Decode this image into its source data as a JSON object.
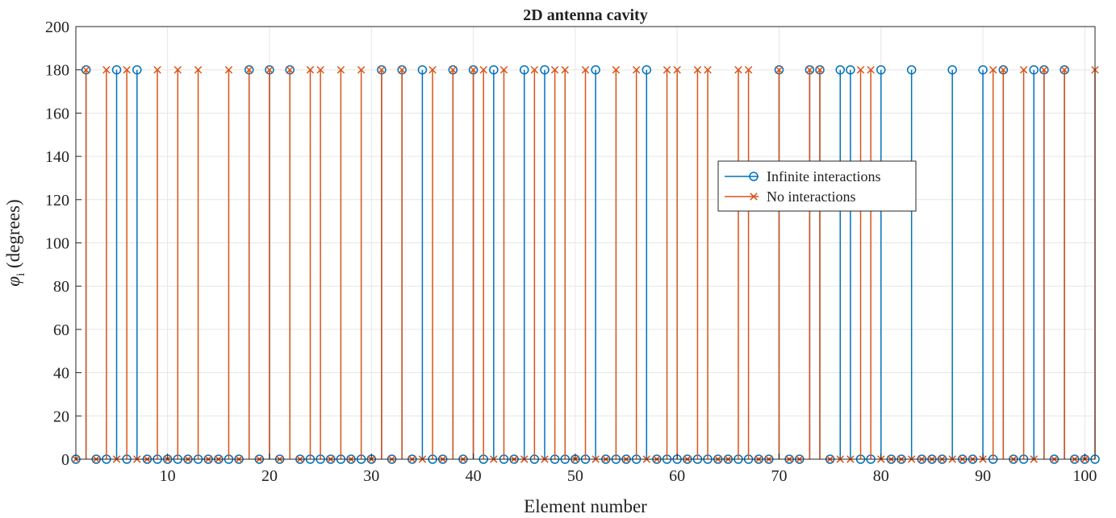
{
  "chart_data": {
    "type": "stem",
    "title": "2D antenna cavity",
    "xlabel": "Element number",
    "ylabel_symbol": "φ",
    "ylabel_subscript": "i",
    "ylabel_rest": " (degrees)",
    "xlim": [
      1,
      101
    ],
    "ylim": [
      0,
      200
    ],
    "xticks": [
      10,
      20,
      30,
      40,
      50,
      60,
      70,
      80,
      90,
      100
    ],
    "yticks": [
      0,
      20,
      40,
      60,
      80,
      100,
      120,
      140,
      160,
      180,
      200
    ],
    "grid": true,
    "legend_position": "right-center",
    "x": [
      1,
      2,
      3,
      4,
      5,
      6,
      7,
      8,
      9,
      10,
      11,
      12,
      13,
      14,
      15,
      16,
      17,
      18,
      19,
      20,
      21,
      22,
      23,
      24,
      25,
      26,
      27,
      28,
      29,
      30,
      31,
      32,
      33,
      34,
      35,
      36,
      37,
      38,
      39,
      40,
      41,
      42,
      43,
      44,
      45,
      46,
      47,
      48,
      49,
      50,
      51,
      52,
      53,
      54,
      55,
      56,
      57,
      58,
      59,
      60,
      61,
      62,
      63,
      64,
      65,
      66,
      67,
      68,
      69,
      70,
      71,
      72,
      73,
      74,
      75,
      76,
      77,
      78,
      79,
      80,
      81,
      82,
      83,
      84,
      85,
      86,
      87,
      88,
      89,
      90,
      91,
      92,
      93,
      94,
      95,
      96,
      97,
      98,
      99,
      100,
      101
    ],
    "series": [
      {
        "name": "Infinite interactions",
        "marker": "circle",
        "color": "#0072BD",
        "values": [
          0,
          180,
          0,
          0,
          180,
          0,
          180,
          0,
          0,
          0,
          0,
          0,
          0,
          0,
          0,
          0,
          0,
          180,
          0,
          180,
          0,
          180,
          0,
          0,
          0,
          0,
          0,
          0,
          0,
          0,
          180,
          0,
          180,
          0,
          180,
          0,
          0,
          180,
          0,
          180,
          0,
          180,
          0,
          0,
          180,
          0,
          180,
          0,
          0,
          0,
          0,
          180,
          0,
          0,
          0,
          0,
          180,
          0,
          0,
          0,
          0,
          0,
          0,
          0,
          0,
          0,
          0,
          0,
          0,
          180,
          0,
          0,
          180,
          180,
          0,
          180,
          180,
          0,
          0,
          180,
          0,
          0,
          180,
          0,
          0,
          0,
          180,
          0,
          0,
          180,
          0,
          180,
          0,
          0,
          180,
          180,
          0,
          180,
          0,
          0,
          0
        ]
      },
      {
        "name": "No interactions",
        "marker": "x",
        "color": "#D95319",
        "values": [
          0,
          180,
          0,
          180,
          0,
          180,
          0,
          0,
          180,
          0,
          180,
          0,
          180,
          0,
          0,
          180,
          0,
          180,
          0,
          180,
          0,
          180,
          0,
          180,
          180,
          0,
          180,
          0,
          180,
          0,
          180,
          0,
          180,
          0,
          0,
          180,
          0,
          180,
          0,
          180,
          180,
          0,
          180,
          0,
          0,
          180,
          0,
          180,
          180,
          0,
          180,
          0,
          0,
          180,
          0,
          180,
          0,
          0,
          180,
          180,
          0,
          180,
          180,
          0,
          0,
          180,
          180,
          0,
          0,
          180,
          0,
          0,
          180,
          180,
          0,
          0,
          0,
          180,
          180,
          0,
          0,
          0,
          0,
          0,
          0,
          0,
          0,
          0,
          0,
          0,
          180,
          180,
          0,
          180,
          0,
          180,
          0,
          180,
          0,
          0,
          180
        ]
      }
    ]
  }
}
